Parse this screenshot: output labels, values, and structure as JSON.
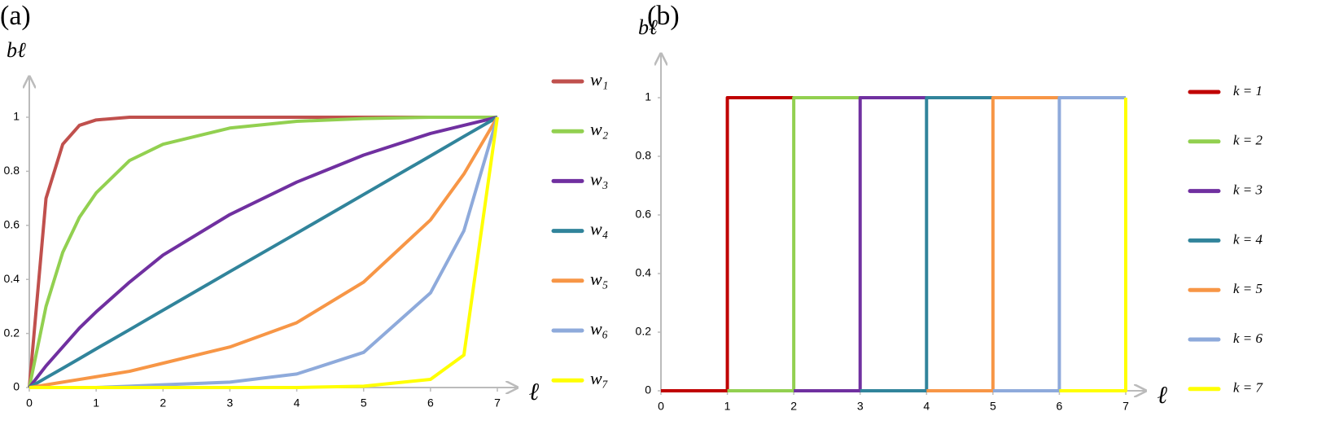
{
  "chart_data": [
    {
      "type": "line",
      "title": "(a)",
      "y_label": "bℓ",
      "x_label": "ℓ",
      "x": [
        0,
        0.25,
        0.5,
        0.75,
        1,
        1.5,
        2,
        3,
        4,
        5,
        6,
        6.5,
        7
      ],
      "series": [
        {
          "name": "w₁",
          "color": "#c0504d",
          "values": [
            0,
            0.7,
            0.9,
            0.97,
            0.99,
            1,
            1,
            1,
            1,
            1,
            1,
            1,
            1
          ]
        },
        {
          "name": "w₂",
          "color": "#92d050",
          "values": [
            0,
            0.3,
            0.5,
            0.63,
            0.72,
            0.84,
            0.9,
            0.96,
            0.985,
            0.995,
            1,
            1,
            1
          ]
        },
        {
          "name": "w₃",
          "color": "#7030a0",
          "values": [
            0,
            0.08,
            0.15,
            0.22,
            0.28,
            0.39,
            0.49,
            0.64,
            0.76,
            0.86,
            0.94,
            0.97,
            1
          ]
        },
        {
          "name": "w₄",
          "color": "#31849b",
          "values": [
            0,
            0.036,
            0.071,
            0.107,
            0.143,
            0.214,
            0.286,
            0.429,
            0.571,
            0.714,
            0.857,
            0.929,
            1
          ]
        },
        {
          "name": "w₅",
          "color": "#f79646",
          "values": [
            0,
            0.01,
            0.02,
            0.03,
            0.04,
            0.06,
            0.09,
            0.15,
            0.24,
            0.39,
            0.62,
            0.79,
            1
          ]
        },
        {
          "name": "w₆",
          "color": "#8eaadb",
          "values": [
            0,
            0,
            0,
            0,
            0,
            0.005,
            0.01,
            0.02,
            0.05,
            0.13,
            0.35,
            0.58,
            1
          ]
        },
        {
          "name": "w₇",
          "color": "#ffff00",
          "values": [
            0,
            0,
            0,
            0,
            0,
            0,
            0,
            0,
            0,
            0.005,
            0.03,
            0.12,
            1
          ]
        }
      ],
      "xlim": [
        0,
        7.3
      ],
      "ylim": [
        0,
        1.15
      ],
      "xticks": [
        0,
        1,
        2,
        3,
        4,
        5,
        6,
        7
      ],
      "yticks": [
        0,
        0.2,
        0.4,
        0.6,
        0.8,
        1
      ]
    },
    {
      "type": "line",
      "title": "(b)",
      "y_label": "bℓ",
      "x_label": "ℓ",
      "series": [
        {
          "name": "k = 1",
          "color": "#c00000",
          "x": [
            0,
            1,
            1,
            2
          ],
          "values": [
            0,
            0,
            1,
            1
          ]
        },
        {
          "name": "k = 2",
          "color": "#92d050",
          "x": [
            1,
            2,
            2,
            3
          ],
          "values": [
            0,
            0,
            1,
            1
          ]
        },
        {
          "name": "k = 3",
          "color": "#7030a0",
          "x": [
            2,
            3,
            3,
            4
          ],
          "values": [
            0,
            0,
            1,
            1
          ]
        },
        {
          "name": "k = 4",
          "color": "#31849b",
          "x": [
            3,
            4,
            4,
            5
          ],
          "values": [
            0,
            0,
            1,
            1
          ]
        },
        {
          "name": "k = 5",
          "color": "#f79646",
          "x": [
            4,
            5,
            5,
            6
          ],
          "values": [
            0,
            0,
            1,
            1
          ]
        },
        {
          "name": "k = 6",
          "color": "#8eaadb",
          "x": [
            5,
            6,
            6,
            7
          ],
          "values": [
            0,
            0,
            1,
            1
          ]
        },
        {
          "name": "k = 7",
          "color": "#ffff00",
          "x": [
            6,
            7,
            7
          ],
          "values": [
            0,
            0,
            1
          ]
        }
      ],
      "xlim": [
        0,
        7.3
      ],
      "ylim": [
        0,
        1.15
      ],
      "xticks": [
        0,
        1,
        2,
        3,
        4,
        5,
        6,
        7
      ],
      "yticks": [
        0,
        0.2,
        0.4,
        0.6,
        0.8,
        1
      ]
    }
  ]
}
